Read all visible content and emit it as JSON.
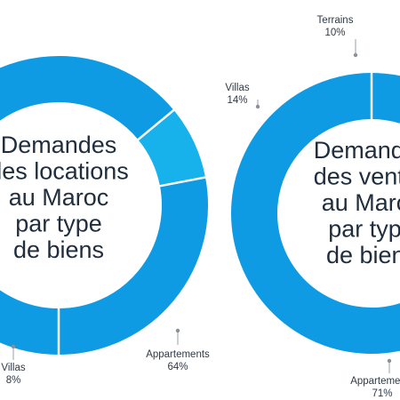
{
  "chart_data": [
    {
      "type": "pie",
      "title_lines": [
        "Demandes",
        "des locations",
        "au Maroc",
        "par type",
        "de biens"
      ],
      "slices": [
        {
          "name": "Appartements",
          "percent_label": "64%",
          "value": 64,
          "color": "#0f9be3"
        },
        {
          "name": "Villas",
          "percent_label": "8%",
          "value": 8,
          "color": "#17b1ec"
        },
        {
          "name": "",
          "percent_label": "",
          "value": 28,
          "color": "#0f9be3"
        }
      ]
    },
    {
      "type": "pie",
      "title_lines": [
        "Demandes",
        "des ventes",
        "au Maroc",
        "par type",
        "de biens"
      ],
      "slices": [
        {
          "name": "Appartements",
          "percent_label": "71%",
          "value": 71,
          "color": "#0f9be3"
        },
        {
          "name": "Villas",
          "percent_label": "14%",
          "value": 14,
          "color": "#17b1ec"
        },
        {
          "name": "Terrains",
          "percent_label": "10%",
          "value": 10,
          "color": "#2ec9f3"
        },
        {
          "name": "",
          "percent_label": "",
          "value": 5,
          "color": "#0f9be3"
        }
      ]
    }
  ]
}
